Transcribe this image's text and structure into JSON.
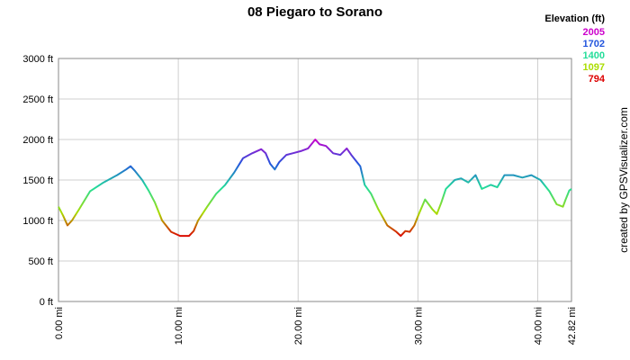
{
  "chart_data": {
    "type": "line",
    "title": "08 Piegaro to Sorano",
    "credit": "created by GPSVisualizer.com",
    "legend": {
      "title": "Elevation (ft)",
      "corner": "top-right",
      "entries": [
        {
          "value": 2005,
          "color": "#cc00cc"
        },
        {
          "value": 1702,
          "color": "#2255dd"
        },
        {
          "value": 1400,
          "color": "#22dd99"
        },
        {
          "value": 1097,
          "color": "#aadd00"
        },
        {
          "value": 794,
          "color": "#dd0000"
        }
      ]
    },
    "grid": true,
    "xlim": [
      0,
      42.82
    ],
    "ylim": [
      0,
      3000
    ],
    "xticks": [
      {
        "value": 0,
        "label": "0.00 mi"
      },
      {
        "value": 10,
        "label": "10.00 mi"
      },
      {
        "value": 20,
        "label": "20.00 mi"
      },
      {
        "value": 30,
        "label": "30.00 mi"
      },
      {
        "value": 40,
        "label": "40.00 mi"
      },
      {
        "value": 42.82,
        "label": "42.82 mi"
      }
    ],
    "yticks": [
      {
        "value": 0,
        "label": "0 ft"
      },
      {
        "value": 500,
        "label": "500 ft"
      },
      {
        "value": 1000,
        "label": "1000 ft"
      },
      {
        "value": 1500,
        "label": "1500 ft"
      },
      {
        "value": 2000,
        "label": "2000 ft"
      },
      {
        "value": 2500,
        "label": "2500 ft"
      },
      {
        "value": 3000,
        "label": "3000 ft"
      }
    ],
    "x": [
      0,
      0.38,
      0.75,
      1.13,
      1.73,
      2.63,
      3.76,
      4.89,
      5.64,
      6.02,
      6.39,
      6.99,
      7.52,
      8.05,
      8.65,
      9.4,
      10.15,
      10.9,
      11.28,
      11.65,
      12.41,
      13.16,
      13.91,
      14.66,
      15.41,
      16.17,
      16.92,
      17.29,
      17.67,
      18.05,
      18.42,
      19.02,
      19.55,
      20.3,
      20.83,
      21.43,
      21.8,
      22.33,
      22.93,
      23.53,
      24.06,
      24.44,
      25.19,
      25.56,
      26.09,
      26.69,
      27.44,
      28.2,
      28.57,
      28.95,
      29.32,
      29.7,
      30.08,
      30.6,
      31.2,
      31.58,
      31.95,
      32.33,
      33.08,
      33.61,
      34.21,
      34.81,
      35.34,
      36.09,
      36.62,
      37.22,
      37.97,
      38.72,
      39.47,
      40.23,
      40.98,
      41.58,
      42.11,
      42.33,
      42.63,
      42.82
    ],
    "values": [
      1170,
      1060,
      940,
      1000,
      1140,
      1360,
      1470,
      1560,
      1630,
      1670,
      1610,
      1500,
      1370,
      1220,
      1000,
      860,
      810,
      810,
      870,
      1000,
      1170,
      1330,
      1440,
      1590,
      1770,
      1830,
      1880,
      1830,
      1700,
      1630,
      1720,
      1810,
      1830,
      1860,
      1890,
      2000,
      1940,
      1920,
      1830,
      1810,
      1890,
      1810,
      1670,
      1440,
      1330,
      1140,
      940,
      860,
      810,
      870,
      860,
      940,
      1080,
      1260,
      1140,
      1080,
      1220,
      1390,
      1500,
      1520,
      1470,
      1560,
      1390,
      1440,
      1410,
      1560,
      1560,
      1530,
      1560,
      1500,
      1360,
      1200,
      1170,
      1260,
      1370,
      1390
    ]
  }
}
